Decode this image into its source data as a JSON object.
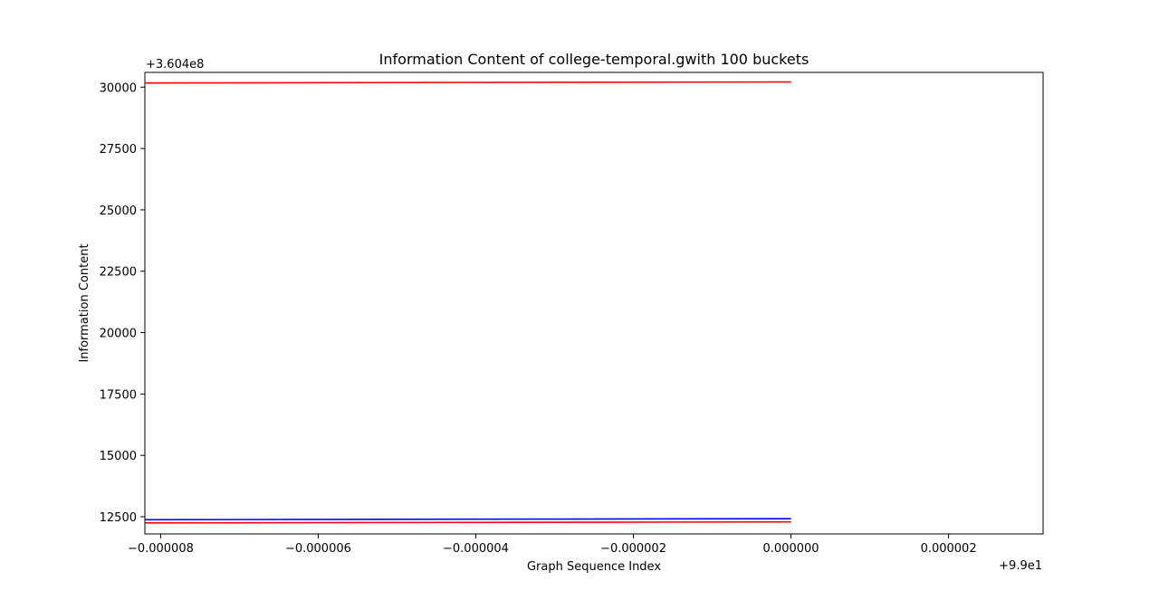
{
  "chart_data": {
    "type": "line",
    "title": "Information Content of college-temporal.gwith 100 buckets",
    "xlabel": "Graph Sequence Index",
    "ylabel": "Information Content",
    "x_offset_label": "+9.9e1",
    "y_offset_label": "+3.604e8",
    "x_offset": 99,
    "y_offset": 360400000,
    "xlim": [
      -8.2e-06,
      3.2e-06
    ],
    "ylim": [
      11800,
      30600
    ],
    "x_ticks": [
      -8e-06,
      -6e-06,
      -4e-06,
      -2e-06,
      0.0,
      2e-06
    ],
    "x_tick_labels": [
      "−0.000008",
      "−0.000006",
      "−0.000004",
      "−0.000002",
      "0.000000",
      "0.000002"
    ],
    "y_ticks": [
      12500,
      15000,
      17500,
      20000,
      22500,
      25000,
      27500,
      30000
    ],
    "y_tick_labels": [
      "12500",
      "15000",
      "17500",
      "20000",
      "22500",
      "25000",
      "27500",
      "30000"
    ],
    "grid": false,
    "series": [
      {
        "color": "#ff0000",
        "x": [
          -8.2e-06,
          0.0
        ],
        "y": [
          30170,
          30210
        ]
      },
      {
        "color": "#0000ff",
        "x": [
          -8.2e-06,
          0.0
        ],
        "y": [
          12380,
          12420
        ]
      },
      {
        "color": "#ff0000",
        "x": [
          -8.2e-06,
          0.0
        ],
        "y": [
          12250,
          12290
        ]
      }
    ]
  }
}
